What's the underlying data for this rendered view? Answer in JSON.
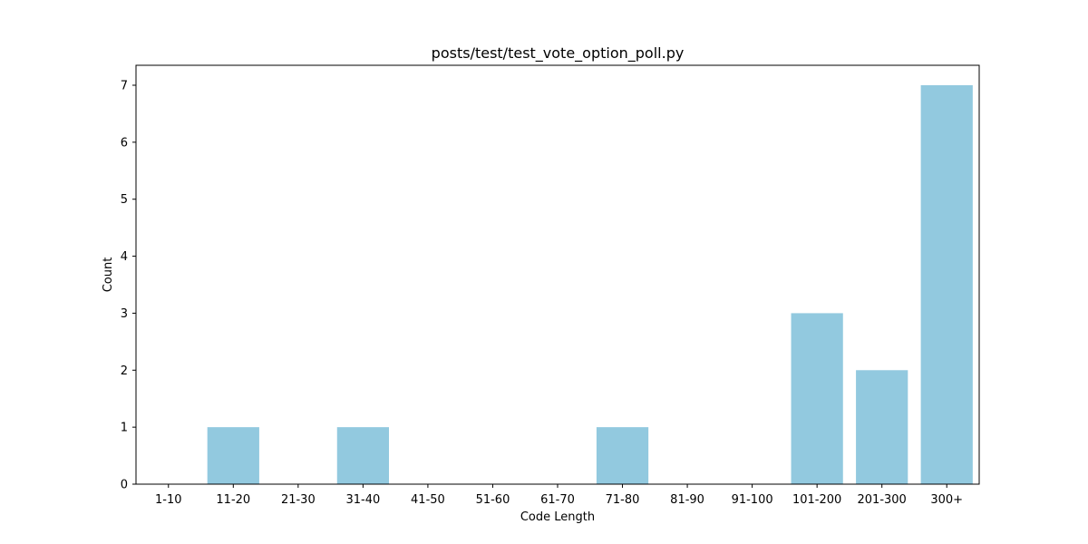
{
  "chart_data": {
    "type": "bar",
    "title": "posts/test/test_vote_option_poll.py",
    "xlabel": "Code Length",
    "ylabel": "Count",
    "categories": [
      "1-10",
      "11-20",
      "21-30",
      "31-40",
      "41-50",
      "51-60",
      "61-70",
      "71-80",
      "81-90",
      "91-100",
      "101-200",
      "201-300",
      "300+"
    ],
    "values": [
      0,
      1,
      0,
      1,
      0,
      0,
      0,
      1,
      0,
      0,
      3,
      2,
      7
    ],
    "ylim": [
      0,
      7.35
    ],
    "yticks": [
      0,
      1,
      2,
      3,
      4,
      5,
      6,
      7
    ],
    "bar_color": "#92c9df",
    "grid": false,
    "legend": "none"
  }
}
